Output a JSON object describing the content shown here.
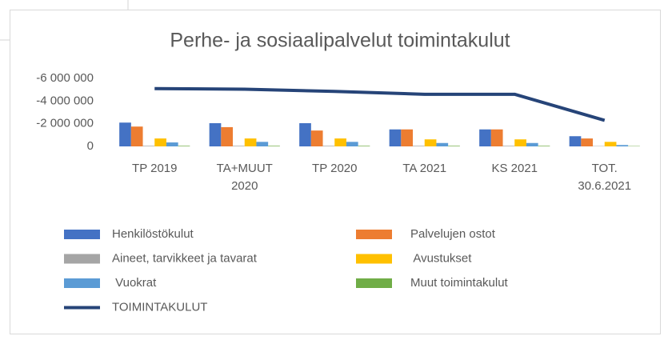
{
  "chart_data": {
    "type": "bar",
    "title": "Perhe- ja sosiaalipalvelut toimintakulut",
    "categories": [
      "TP 2019",
      "TA+MUUT 2020",
      "TP 2020",
      "TA 2021",
      "KS 2021",
      "TOT. 30.6.2021"
    ],
    "series": [
      {
        "name": "Henkilöstökulut",
        "color": "#4472c4",
        "values": [
          -2100000,
          -2050000,
          -2050000,
          -1500000,
          -1500000,
          -900000
        ]
      },
      {
        "name": "Palvelujen ostot",
        "color": "#ed7d31",
        "values": [
          -1750000,
          -1700000,
          -1400000,
          -1500000,
          -1500000,
          -700000
        ]
      },
      {
        "name": "Aineet, tarvikkeet ja tavarat",
        "color": "#a5a5a5",
        "values": [
          -50000,
          -50000,
          -50000,
          -50000,
          -50000,
          -30000
        ]
      },
      {
        "name": " Avustukset",
        "color": "#ffc000",
        "values": [
          -700000,
          -700000,
          -700000,
          -620000,
          -620000,
          -400000
        ]
      },
      {
        "name": " Vuokrat",
        "color": "#5b9bd5",
        "values": [
          -350000,
          -400000,
          -400000,
          -300000,
          -300000,
          -120000
        ]
      },
      {
        "name": "Muut toimintakulut",
        "color": "#70ad47",
        "values": [
          -50000,
          -50000,
          -50000,
          -50000,
          -50000,
          -30000
        ]
      },
      {
        "name": "TOIMINTAKULUT",
        "color": "#264478",
        "type": "line",
        "values": [
          -5100000,
          -5050000,
          -4850000,
          -4600000,
          -4600000,
          -2300000
        ]
      }
    ],
    "ylim": [
      0,
      -6000000
    ],
    "yticks": [
      {
        "value": -6000000,
        "label": "-6 000 000"
      },
      {
        "value": -4000000,
        "label": "-4 000 000"
      },
      {
        "value": -2000000,
        "label": "-2 000 000"
      },
      0
    ],
    "grid": false,
    "legend": "bottom"
  }
}
